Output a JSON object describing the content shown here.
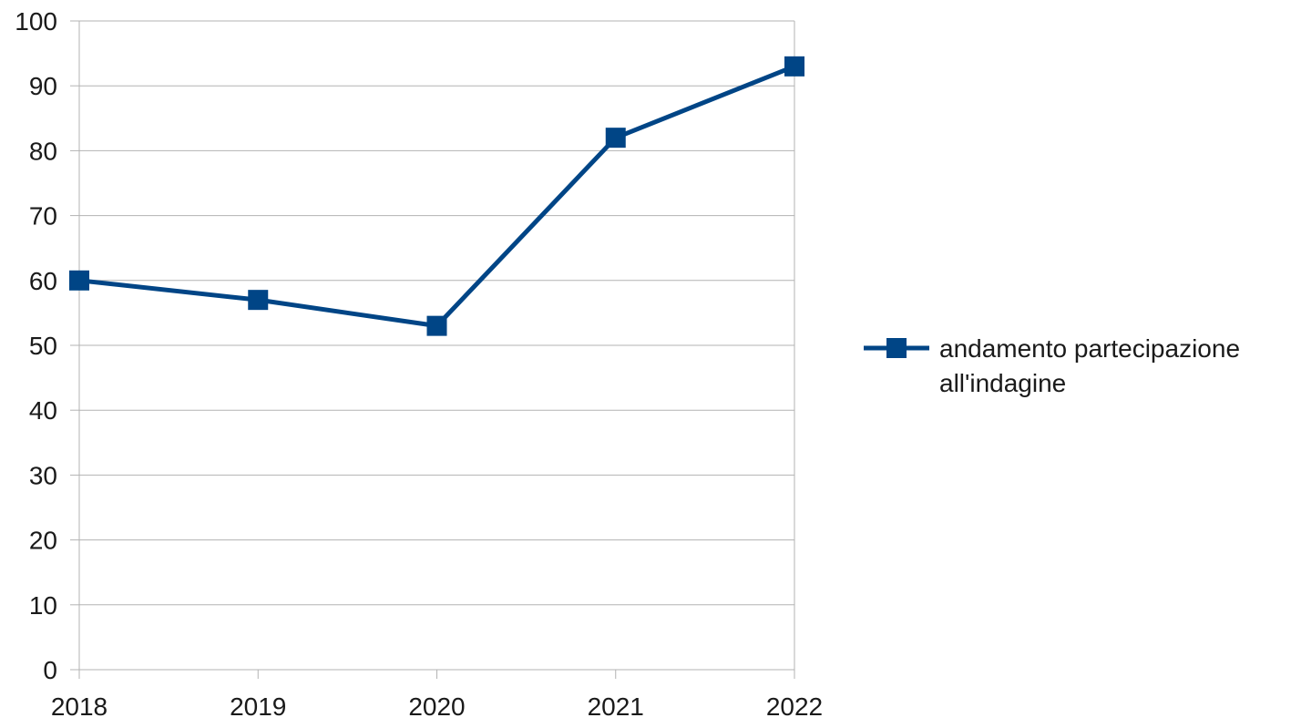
{
  "chart_data": {
    "type": "line",
    "title": "",
    "xlabel": "",
    "ylabel": "",
    "categories": [
      "2018",
      "2019",
      "2020",
      "2021",
      "2022"
    ],
    "series": [
      {
        "name": "andamento partecipazione all'indagine",
        "values": [
          60,
          57,
          53,
          82,
          93
        ],
        "color": "#004586",
        "marker": "square"
      }
    ],
    "ylim": [
      0,
      100
    ],
    "yticks": [
      "0",
      "10",
      "20",
      "30",
      "40",
      "50",
      "60",
      "70",
      "80",
      "90",
      "100"
    ],
    "grid": true,
    "legend_position": "right",
    "legend_lines": [
      "andamento partecipazione",
      "all'indagine"
    ]
  }
}
